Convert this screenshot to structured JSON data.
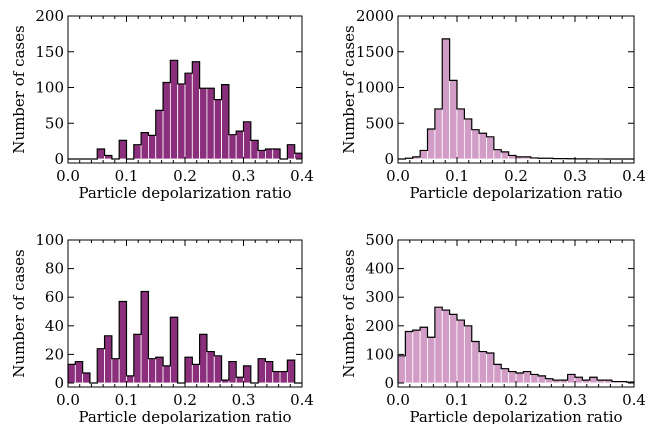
{
  "chart_data": [
    {
      "type": "bar",
      "subtype": "histogram",
      "xlabel": "Particle depolarization ratio",
      "ylabel": "Number of cases",
      "xlim": [
        0.0,
        0.4
      ],
      "ylim": [
        0,
        200
      ],
      "xticks": [
        "0.0",
        "0.1",
        "0.2",
        "0.3",
        "0.4"
      ],
      "yticks": [
        "0",
        "50",
        "100",
        "150",
        "200"
      ],
      "bin_width": 0.0125,
      "bar_color": "#8b2f7c",
      "bins_start": 0.0,
      "values": [
        0,
        0,
        0,
        0,
        14,
        5,
        0,
        26,
        0,
        20,
        37,
        33,
        68,
        107,
        138,
        105,
        120,
        136,
        99,
        99,
        83,
        104,
        34,
        39,
        52,
        26,
        12,
        14,
        14,
        0,
        20,
        8
      ]
    },
    {
      "type": "bar",
      "subtype": "histogram",
      "xlabel": "Particle depolarization ratio",
      "ylabel": "Number of cases",
      "xlim": [
        0.0,
        0.4
      ],
      "ylim": [
        0,
        2000
      ],
      "xticks": [
        "0.0",
        "0.1",
        "0.2",
        "0.3",
        "0.4"
      ],
      "yticks": [
        "0",
        "500",
        "1000",
        "1500",
        "2000"
      ],
      "bin_width": 0.0125,
      "bar_color": "#d19dc6",
      "bins_start": 0.0,
      "values": [
        0,
        10,
        30,
        120,
        420,
        700,
        1680,
        1100,
        700,
        560,
        410,
        360,
        310,
        130,
        100,
        50,
        30,
        30,
        15,
        10,
        10,
        5,
        5,
        3,
        2,
        2,
        1,
        1,
        0,
        0,
        0,
        0
      ]
    },
    {
      "type": "bar",
      "subtype": "histogram",
      "xlabel": "Particle depolarization ratio",
      "ylabel": "Number of cases",
      "xlim": [
        0.0,
        0.4
      ],
      "ylim": [
        0,
        100
      ],
      "xticks": [
        "0.0",
        "0.1",
        "0.2",
        "0.3",
        "0.4"
      ],
      "yticks": [
        "0",
        "20",
        "40",
        "60",
        "80",
        "100"
      ],
      "bin_width": 0.0125,
      "bar_color": "#8b2f7c",
      "bins_start": 0.0,
      "values": [
        13,
        15,
        7,
        0,
        24,
        33,
        17,
        57,
        5,
        34,
        64,
        17,
        18,
        12,
        46,
        0,
        18,
        13,
        34,
        22,
        19,
        2,
        15,
        4,
        12,
        0,
        17,
        15,
        8,
        8,
        16,
        0
      ]
    },
    {
      "type": "bar",
      "subtype": "histogram",
      "xlabel": "Particle depolarization ratio",
      "ylabel": "Number of cases",
      "xlim": [
        0.0,
        0.4
      ],
      "ylim": [
        0,
        500
      ],
      "xticks": [
        "0.0",
        "0.1",
        "0.2",
        "0.3",
        "0.4"
      ],
      "yticks": [
        "0",
        "100",
        "200",
        "300",
        "400",
        "500"
      ],
      "bin_width": 0.0125,
      "bar_color": "#d19dc6",
      "bins_start": 0.0,
      "values": [
        95,
        180,
        185,
        195,
        160,
        265,
        255,
        240,
        220,
        200,
        145,
        110,
        105,
        65,
        50,
        40,
        35,
        40,
        30,
        25,
        15,
        10,
        10,
        30,
        20,
        10,
        20,
        10,
        10,
        5,
        5,
        3
      ]
    }
  ]
}
